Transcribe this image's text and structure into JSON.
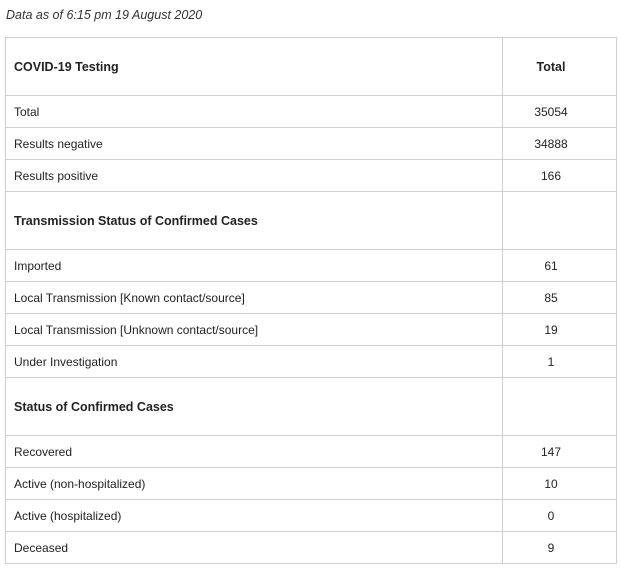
{
  "caption": "Data as of 6:15 pm 19 August 2020",
  "header": {
    "label": "COVID-19 Testing",
    "total": "Total"
  },
  "testing": [
    {
      "label": "Total",
      "value": "35054"
    },
    {
      "label": "Results negative",
      "value": "34888"
    },
    {
      "label": "Results positive",
      "value": "166"
    }
  ],
  "transmission": {
    "title": "Transmission Status of Confirmed Cases",
    "rows": [
      {
        "label": "Imported",
        "value": "61"
      },
      {
        "label": "Local Transmission [Known contact/source]",
        "value": "85"
      },
      {
        "label": "Local Transmission [Unknown contact/source]",
        "value": "19"
      },
      {
        "label": "Under Investigation",
        "value": "1"
      }
    ]
  },
  "status": {
    "title": "Status of Confirmed Cases",
    "rows": [
      {
        "label": "Recovered",
        "value": "147"
      },
      {
        "label": "Active (non-hospitalized)",
        "value": "10"
      },
      {
        "label": "Active (hospitalized)",
        "value": "0"
      },
      {
        "label": "Deceased",
        "value": "9"
      }
    ]
  }
}
